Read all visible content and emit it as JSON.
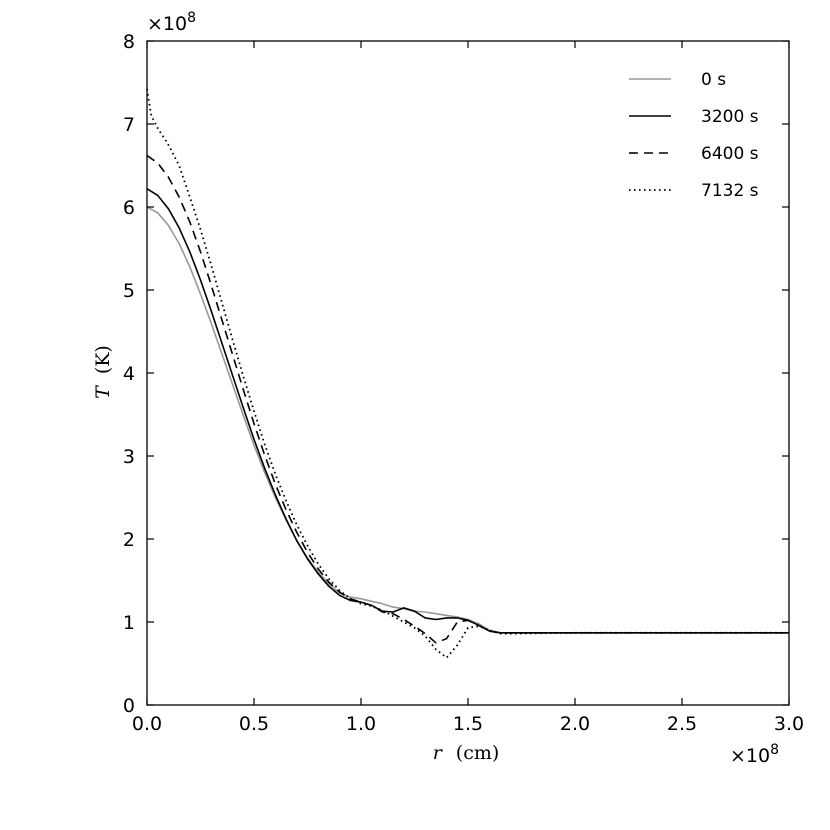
{
  "chart_data": {
    "type": "line",
    "title": "",
    "xlabel_var": "r",
    "xlabel_unit": "(cm)",
    "ylabel_var": "T",
    "ylabel_unit": "(K)",
    "x_offset_text": "×10",
    "x_offset_exp": "8",
    "y_offset_text": "×10",
    "y_offset_exp": "8",
    "xlim": [
      0.0,
      3.0
    ],
    "ylim": [
      0,
      8
    ],
    "xticks": [
      "0.0",
      "0.5",
      "1.0",
      "1.5",
      "2.0",
      "2.5",
      "3.0"
    ],
    "yticks": [
      "0",
      "1",
      "2",
      "3",
      "4",
      "5",
      "6",
      "7",
      "8"
    ],
    "grid": false,
    "legend_position": "top-right",
    "series": [
      {
        "name": "0 s",
        "color": "#999999",
        "style": "solid",
        "x": [
          0.0,
          0.05,
          0.1,
          0.15,
          0.2,
          0.25,
          0.3,
          0.35,
          0.4,
          0.45,
          0.5,
          0.55,
          0.6,
          0.65,
          0.7,
          0.75,
          0.8,
          0.85,
          0.9,
          0.95,
          1.0,
          1.05,
          1.1,
          1.15,
          1.2,
          1.25,
          1.3,
          1.35,
          1.4,
          1.45,
          1.5,
          1.55,
          1.6,
          1.65,
          1.7,
          2.0,
          2.5,
          3.0
        ],
        "y": [
          6.0,
          5.93,
          5.78,
          5.56,
          5.28,
          4.95,
          4.6,
          4.23,
          3.86,
          3.49,
          3.13,
          2.8,
          2.5,
          2.23,
          1.98,
          1.77,
          1.6,
          1.46,
          1.35,
          1.3,
          1.28,
          1.25,
          1.22,
          1.18,
          1.16,
          1.13,
          1.12,
          1.1,
          1.08,
          1.06,
          1.03,
          0.98,
          0.9,
          0.87,
          0.87,
          0.87,
          0.87,
          0.87
        ]
      },
      {
        "name": "3200 s",
        "color": "#000000",
        "style": "solid",
        "x": [
          0.0,
          0.05,
          0.1,
          0.15,
          0.2,
          0.25,
          0.3,
          0.35,
          0.4,
          0.45,
          0.5,
          0.55,
          0.6,
          0.65,
          0.7,
          0.75,
          0.8,
          0.85,
          0.9,
          0.95,
          1.0,
          1.05,
          1.1,
          1.15,
          1.2,
          1.25,
          1.3,
          1.35,
          1.4,
          1.45,
          1.5,
          1.55,
          1.6,
          1.65,
          1.7,
          2.0,
          2.5,
          3.0
        ],
        "y": [
          6.22,
          6.14,
          5.98,
          5.75,
          5.46,
          5.12,
          4.75,
          4.36,
          3.97,
          3.58,
          3.2,
          2.85,
          2.53,
          2.24,
          1.98,
          1.76,
          1.58,
          1.43,
          1.32,
          1.26,
          1.24,
          1.2,
          1.13,
          1.12,
          1.17,
          1.13,
          1.05,
          1.03,
          1.05,
          1.05,
          1.02,
          0.96,
          0.89,
          0.87,
          0.87,
          0.87,
          0.87,
          0.87
        ]
      },
      {
        "name": "6400 s",
        "color": "#000000",
        "style": "dashed",
        "x": [
          0.0,
          0.05,
          0.1,
          0.15,
          0.2,
          0.25,
          0.3,
          0.35,
          0.4,
          0.45,
          0.5,
          0.55,
          0.6,
          0.65,
          0.7,
          0.75,
          0.8,
          0.85,
          0.9,
          0.95,
          1.0,
          1.05,
          1.1,
          1.15,
          1.2,
          1.25,
          1.3,
          1.35,
          1.4,
          1.45,
          1.5,
          1.55,
          1.6,
          1.65,
          1.7,
          2.0,
          2.5,
          3.0
        ],
        "y": [
          6.62,
          6.53,
          6.36,
          6.12,
          5.82,
          5.46,
          5.06,
          4.64,
          4.22,
          3.8,
          3.39,
          3.01,
          2.66,
          2.35,
          2.08,
          1.84,
          1.64,
          1.48,
          1.36,
          1.28,
          1.24,
          1.2,
          1.12,
          1.1,
          1.03,
          0.95,
          0.86,
          0.75,
          0.8,
          1.0,
          1.02,
          0.96,
          0.89,
          0.87,
          0.87,
          0.87,
          0.87,
          0.87
        ]
      },
      {
        "name": "7132 s",
        "color": "#000000",
        "style": "dotted",
        "x": [
          0.0,
          0.02,
          0.05,
          0.1,
          0.15,
          0.2,
          0.25,
          0.3,
          0.35,
          0.4,
          0.45,
          0.5,
          0.55,
          0.6,
          0.65,
          0.7,
          0.75,
          0.8,
          0.85,
          0.9,
          0.95,
          1.0,
          1.05,
          1.1,
          1.15,
          1.2,
          1.25,
          1.3,
          1.35,
          1.4,
          1.45,
          1.5,
          1.55,
          1.6,
          1.65,
          1.7,
          2.0,
          2.5,
          3.0
        ],
        "y": [
          7.42,
          7.1,
          6.95,
          6.75,
          6.5,
          6.12,
          5.73,
          5.3,
          4.85,
          4.4,
          3.96,
          3.54,
          3.14,
          2.78,
          2.46,
          2.17,
          1.92,
          1.7,
          1.52,
          1.38,
          1.28,
          1.22,
          1.19,
          1.14,
          1.07,
          1.0,
          0.93,
          0.83,
          0.67,
          0.57,
          0.72,
          0.93,
          0.95,
          0.9,
          0.86,
          0.86,
          0.87,
          0.87,
          0.87
        ]
      }
    ]
  }
}
